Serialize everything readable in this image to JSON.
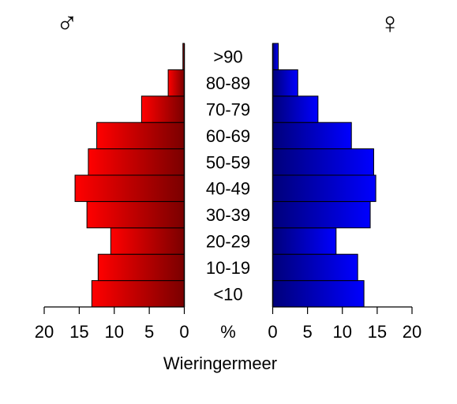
{
  "chart_data": {
    "type": "bar",
    "title": "Wieringermeer",
    "categories": [
      "<10",
      "10-19",
      "20-29",
      "30-39",
      "40-49",
      "50-59",
      "60-69",
      "70-79",
      "80-89",
      ">90"
    ],
    "series": [
      {
        "name": "♂",
        "values": [
          13.2,
          12.3,
          10.5,
          13.9,
          15.6,
          13.7,
          12.5,
          6.1,
          2.3,
          0.2
        ]
      },
      {
        "name": "♀",
        "values": [
          13.1,
          12.2,
          9.1,
          14.0,
          14.8,
          14.5,
          11.3,
          6.5,
          3.6,
          0.8
        ]
      }
    ],
    "xlim": [
      0,
      20
    ],
    "ticks": [
      0,
      5,
      10,
      15,
      20
    ],
    "center_axis_label": "%",
    "colors": {
      "male_light": "#ff0000",
      "male_dark": "#7a0000",
      "female_light": "#0000ff",
      "female_dark": "#00007a"
    }
  }
}
